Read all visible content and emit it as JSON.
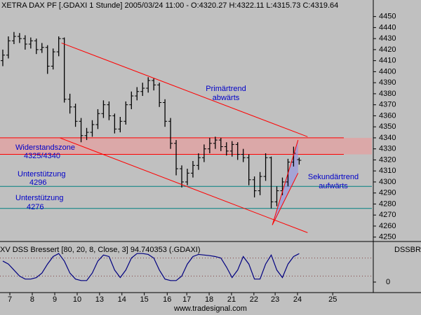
{
  "footer": "www.tradesignal.com",
  "chart_data": [
    {
      "type": "ohlc",
      "title": "XETRA DAX PF [.GDAXI  1 Stunde] 2005/03/24 11:00 - O:4320.27 H:4322.11 L:4315.73 C:4319.64",
      "color": "#000000",
      "open": [
        4410,
        4415,
        4428,
        4432,
        4430,
        4425,
        4428,
        4420,
        4422,
        4405,
        4418,
        4430,
        4375,
        4368,
        4355,
        4342,
        4345,
        4352,
        4362,
        4370,
        4360,
        4348,
        4355,
        4370,
        4378,
        4382,
        4385,
        4392,
        4388,
        4372,
        4355,
        4335,
        4312,
        4300,
        4308,
        4315,
        4322,
        4330,
        4335,
        4338,
        4332,
        4328,
        4334,
        4325,
        4322,
        4302,
        4292,
        4305,
        4322,
        4282,
        4292,
        4300,
        4318,
        4320.27
      ],
      "high": [
        4420,
        4432,
        4436,
        4435,
        4433,
        4431,
        4430,
        4426,
        4424,
        4421,
        4432,
        4431,
        4380,
        4371,
        4358,
        4349,
        4356,
        4366,
        4374,
        4373,
        4362,
        4359,
        4373,
        4382,
        4386,
        4390,
        4395,
        4394,
        4390,
        4375,
        4358,
        4338,
        4315,
        4312,
        4319,
        4326,
        4334,
        4340,
        4341,
        4340,
        4336,
        4337,
        4336,
        4330,
        4325,
        4305,
        4309,
        4326,
        4323,
        4296,
        4304,
        4321,
        4332,
        4322.11
      ],
      "low": [
        4405,
        4412,
        4425,
        4426,
        4420,
        4421,
        4416,
        4417,
        4398,
        4402,
        4414,
        4372,
        4362,
        4350,
        4336,
        4338,
        4341,
        4348,
        4358,
        4356,
        4344,
        4345,
        4352,
        4366,
        4374,
        4378,
        4381,
        4383,
        4368,
        4350,
        4330,
        4306,
        4295,
        4297,
        4304,
        4311,
        4318,
        4326,
        4330,
        4328,
        4324,
        4323,
        4320,
        4318,
        4297,
        4286,
        4288,
        4301,
        4276,
        4278,
        4288,
        4296,
        4314,
        4315.73
      ],
      "close": [
        4415,
        4428,
        4432,
        4430,
        4425,
        4428,
        4420,
        4422,
        4405,
        4418,
        4430,
        4375,
        4368,
        4355,
        4342,
        4345,
        4352,
        4362,
        4370,
        4360,
        4348,
        4355,
        4370,
        4378,
        4382,
        4385,
        4392,
        4388,
        4372,
        4355,
        4335,
        4312,
        4300,
        4308,
        4315,
        4322,
        4330,
        4335,
        4338,
        4332,
        4328,
        4334,
        4325,
        4322,
        4302,
        4292,
        4305,
        4322,
        4282,
        4292,
        4300,
        4318,
        4326,
        4319.64
      ],
      "xlim": [
        -0.5,
        66
      ],
      "xticks": [
        {
          "value": 1.26,
          "label": "7"
        },
        {
          "value": 5.27,
          "label": "8"
        },
        {
          "value": 9.29,
          "label": "9"
        },
        {
          "value": 13.3,
          "label": "10"
        },
        {
          "value": 17.3,
          "label": "13"
        },
        {
          "value": 21.3,
          "label": "14"
        },
        {
          "value": 25.3,
          "label": "15"
        },
        {
          "value": 29.4,
          "label": "16"
        },
        {
          "value": 32.9,
          "label": "17"
        },
        {
          "value": 36.9,
          "label": "18"
        },
        {
          "value": 40.9,
          "label": "21"
        },
        {
          "value": 44.9,
          "label": "22"
        },
        {
          "value": 48.7,
          "label": "23"
        },
        {
          "value": 52.7,
          "label": "24"
        },
        {
          "value": 59,
          "label": "25"
        }
      ],
      "ylim": [
        4246,
        4465
      ],
      "yticks": [
        4250,
        4260,
        4270,
        4280,
        4290,
        4300,
        4310,
        4320,
        4330,
        4340,
        4350,
        4360,
        4370,
        4380,
        4390,
        4400,
        4410,
        4420,
        4430,
        4440,
        4450
      ],
      "zone": [
        4325,
        4340
      ],
      "zone_label": [
        "Widerstandszone",
        "4325/4340"
      ],
      "supports": [
        {
          "value": 4296,
          "label": "Unterstützung"
        },
        {
          "value": 4276,
          "label": "Unterstützung"
        }
      ],
      "trendlines": [
        {
          "from": [
            10.5,
            4426
          ],
          "to": [
            54.5,
            4341
          ]
        },
        {
          "from": [
            10.2,
            4340
          ],
          "to": [
            54.5,
            4254
          ]
        },
        {
          "from": [
            48.2,
            4261
          ],
          "to": [
            52.8,
            4338
          ]
        },
        {
          "from": [
            48.2,
            4261
          ],
          "to": [
            52.8,
            4308
          ]
        }
      ],
      "annotations": [
        [
          "Primärtrend",
          "abwärts"
        ],
        [
          "Sekundärtrend",
          "aufwärts"
        ]
      ]
    },
    {
      "type": "line",
      "title": "XV DSS Bressert [80, 20, 8, Close, 3] 94.740353 (.GDAXI)",
      "label": "DSSBR",
      "color": "#000080",
      "values": [
        70,
        60,
        40,
        20,
        10,
        10,
        15,
        30,
        60,
        85,
        95,
        70,
        30,
        10,
        5,
        5,
        30,
        70,
        90,
        85,
        40,
        15,
        40,
        80,
        95,
        95,
        92,
        80,
        40,
        10,
        5,
        5,
        20,
        60,
        85,
        92,
        90,
        88,
        85,
        80,
        50,
        15,
        40,
        85,
        60,
        10,
        10,
        60,
        90,
        40,
        15,
        60,
        85,
        94.740353
      ],
      "ylim": [
        -35,
        135
      ],
      "yticks": [
        0
      ],
      "levels": [
        80,
        20
      ]
    }
  ]
}
